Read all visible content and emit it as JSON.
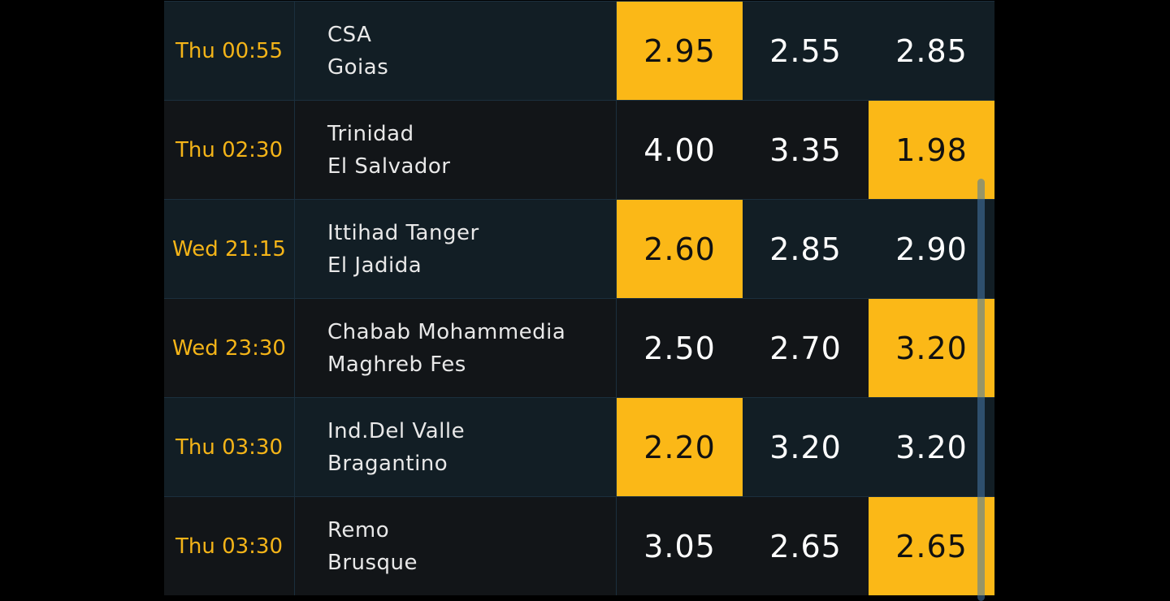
{
  "colors": {
    "accent": "#fbb817",
    "time": "#f4b418"
  },
  "matches": [
    {
      "time": "Thu 00:55",
      "home": "CSA",
      "away": "Goias",
      "odds": [
        "2.95",
        "2.55",
        "2.85"
      ],
      "highlight": 0
    },
    {
      "time": "Thu 02:30",
      "home": "Trinidad",
      "away": "El Salvador",
      "odds": [
        "4.00",
        "3.35",
        "1.98"
      ],
      "highlight": 2
    },
    {
      "time": "Wed 21:15",
      "home": "Ittihad Tanger",
      "away": "El Jadida",
      "odds": [
        "2.60",
        "2.85",
        "2.90"
      ],
      "highlight": 0
    },
    {
      "time": "Wed 23:30",
      "home": "Chabab Mohammedia",
      "away": "Maghreb Fes",
      "odds": [
        "2.50",
        "2.70",
        "3.20"
      ],
      "highlight": 2
    },
    {
      "time": "Thu 03:30",
      "home": "Ind.Del Valle",
      "away": "Bragantino",
      "odds": [
        "2.20",
        "3.20",
        "3.20"
      ],
      "highlight": 0
    },
    {
      "time": "Thu 03:30",
      "home": "Remo",
      "away": "Brusque",
      "odds": [
        "3.05",
        "2.65",
        "2.65"
      ],
      "highlight": 2
    }
  ]
}
